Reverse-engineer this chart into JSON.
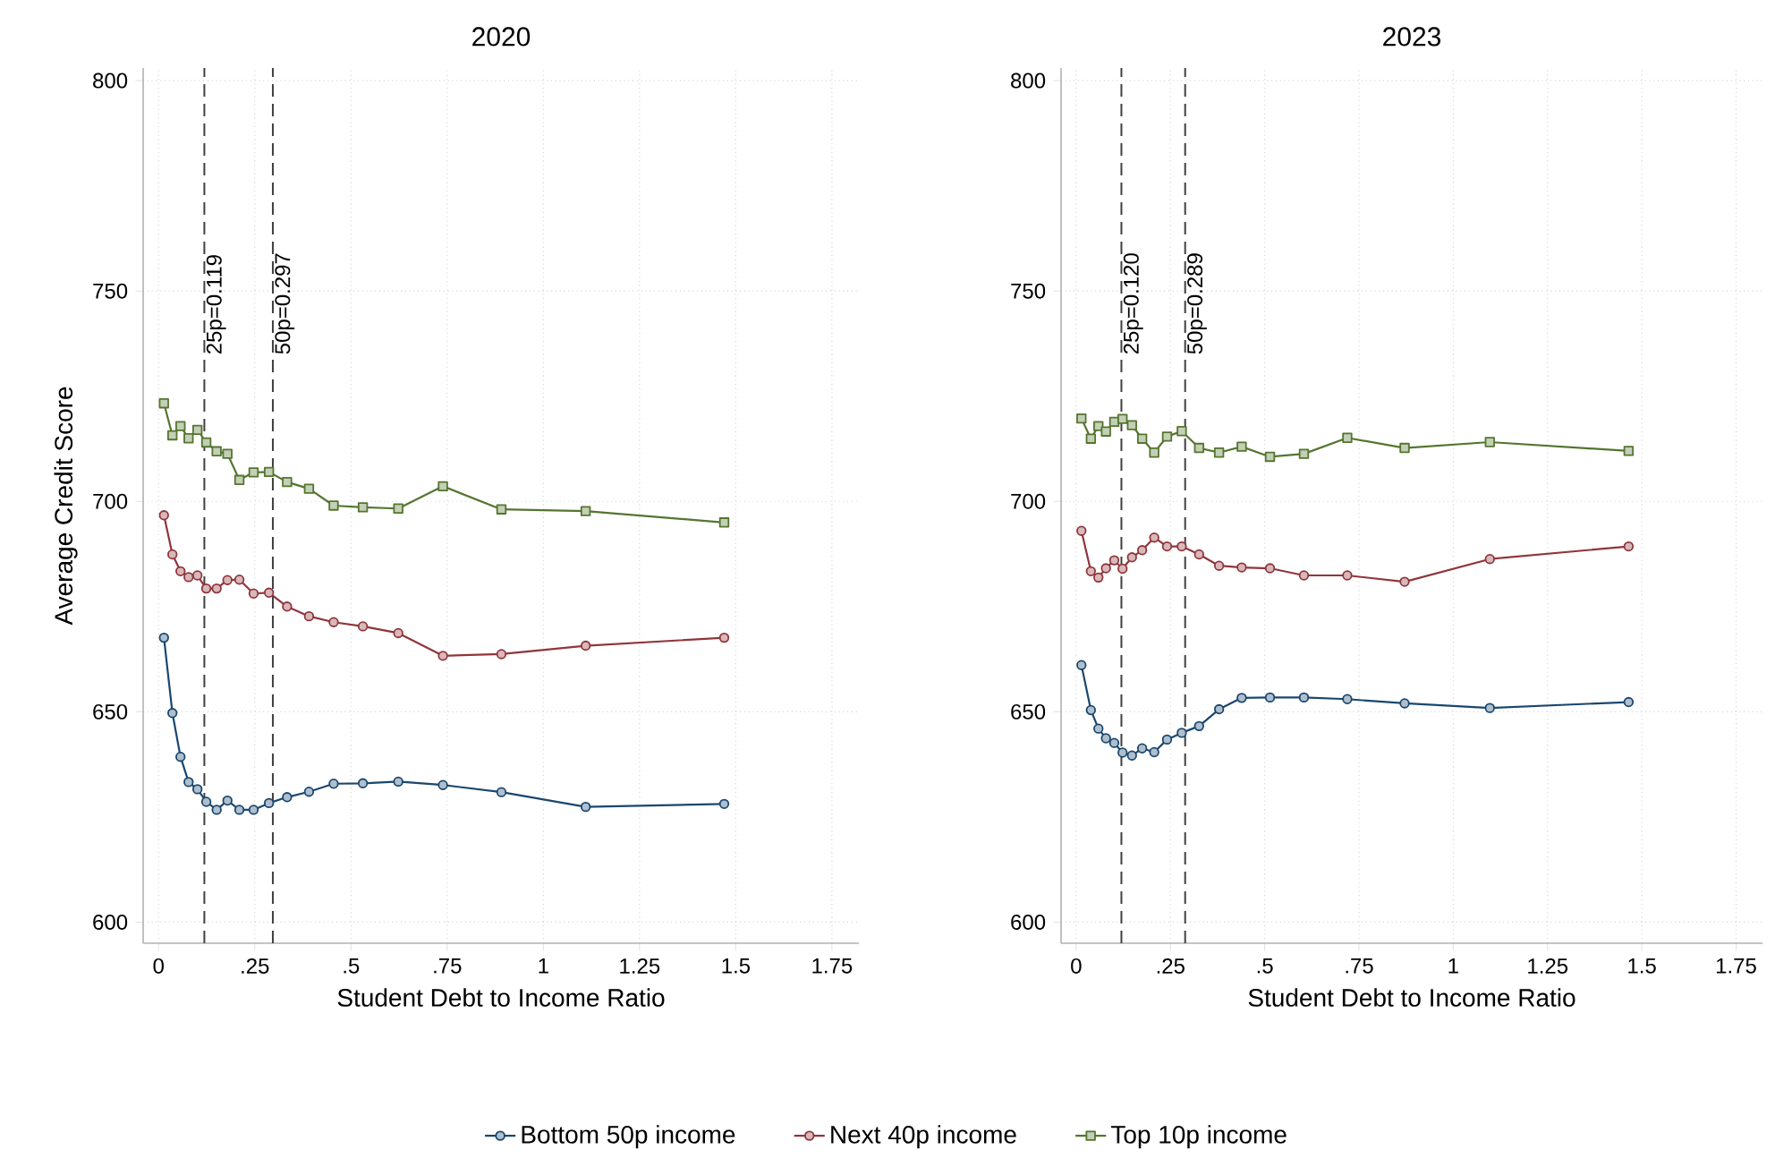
{
  "chart_data": [
    {
      "type": "line",
      "title": "2020",
      "xlabel": "Student Debt to Income Ratio",
      "ylabel": "Average Credit Score",
      "x": [
        0.014,
        0.036,
        0.057,
        0.078,
        0.101,
        0.124,
        0.151,
        0.179,
        0.21,
        0.247,
        0.287,
        0.334,
        0.391,
        0.455,
        0.531,
        0.623,
        0.739,
        0.891,
        1.11,
        1.47
      ],
      "series": [
        {
          "name": "Bottom 50p income",
          "color": "#1a476f",
          "marker": "circle",
          "values": [
            667.6,
            649.7,
            639.3,
            633.3,
            631.6,
            628.6,
            626.7,
            628.9,
            626.7,
            626.7,
            628.3,
            629.7,
            631,
            632.9,
            633,
            633.4,
            632.6,
            630.9,
            627.4,
            628.1
          ]
        },
        {
          "name": "Next 40p income",
          "color": "#90353b",
          "marker": "circle",
          "values": [
            696.7,
            687.4,
            683.4,
            682,
            682.4,
            679.3,
            679.3,
            681.3,
            681.4,
            678.1,
            678.3,
            675,
            672.7,
            671.3,
            670.3,
            668.7,
            663.3,
            663.7,
            665.7,
            667.6
          ]
        },
        {
          "name": "Top 10p income",
          "color": "#55752f",
          "marker": "square",
          "values": [
            723.3,
            715.7,
            717.9,
            715,
            717,
            714,
            711.9,
            711.3,
            705.1,
            706.9,
            707,
            704.6,
            703,
            699,
            698.6,
            698.3,
            703.6,
            698.1,
            697.7,
            695
          ]
        }
      ],
      "ref_lines": [
        {
          "axis": "x",
          "value": 0.119,
          "label": "25p=0.119",
          "line_style": "dashed"
        },
        {
          "axis": "x",
          "value": 0.297,
          "label": "50p=0.297",
          "line_style": "dashed"
        }
      ],
      "xlim": [
        -0.04,
        1.82
      ],
      "ylim": [
        595,
        803
      ],
      "xticks": [
        0,
        {
          "value": 0.25,
          "label": ".25"
        },
        {
          "value": 0.5,
          "label": ".5"
        },
        {
          "value": 0.75,
          "label": ".75"
        },
        1,
        1.25,
        1.5,
        1.75
      ],
      "yticks": [
        600,
        650,
        700,
        750,
        800
      ],
      "grid": true,
      "legend": "bottom",
      "line_style": "solid"
    },
    {
      "type": "line",
      "title": "2023",
      "xlabel": "Student Debt to Income Ratio",
      "x": [
        0.014,
        0.039,
        0.059,
        0.079,
        0.101,
        0.123,
        0.148,
        0.175,
        0.207,
        0.241,
        0.28,
        0.326,
        0.379,
        0.439,
        0.514,
        0.604,
        0.719,
        0.871,
        1.097,
        1.465
      ],
      "series": [
        {
          "color": "#1a476f",
          "marker": "circle",
          "values": [
            661.1,
            650.4,
            646,
            643.7,
            642.6,
            640.3,
            639.6,
            641.3,
            640.4,
            643.4,
            645,
            646.6,
            650.6,
            653.3,
            653.4,
            653.4,
            653,
            652,
            650.9,
            652.3
          ]
        },
        {
          "color": "#90353b",
          "marker": "circle",
          "values": [
            693,
            683.4,
            681.9,
            684.1,
            686,
            684,
            686.7,
            688.4,
            691.4,
            689.3,
            689.3,
            687.4,
            684.7,
            684.3,
            684.1,
            682.4,
            682.4,
            680.9,
            686.3,
            689.3
          ]
        },
        {
          "color": "#55752f",
          "marker": "square",
          "values": [
            719.7,
            714.9,
            717.9,
            716.6,
            718.9,
            719.6,
            718.1,
            714.9,
            711.6,
            715.4,
            716.7,
            712.7,
            711.6,
            713,
            710.6,
            711.3,
            715.1,
            712.7,
            714.1,
            712
          ]
        }
      ],
      "ref_lines": [
        {
          "axis": "x",
          "value": 0.12,
          "label": "25p=0.120",
          "line_style": "dashed"
        },
        {
          "axis": "x",
          "value": 0.289,
          "label": "50p=0.289",
          "line_style": "dashed"
        }
      ],
      "xlim": [
        -0.04,
        1.82
      ],
      "ylim": [
        595,
        803
      ],
      "xticks": [
        0,
        {
          "value": 0.25,
          "label": ".25"
        },
        {
          "value": 0.5,
          "label": ".5"
        },
        {
          "value": 0.75,
          "label": ".75"
        },
        1,
        1.25,
        1.5,
        1.75
      ],
      "yticks": [
        600,
        650,
        700,
        750,
        800
      ],
      "grid": true,
      "line_style": "solid"
    }
  ]
}
